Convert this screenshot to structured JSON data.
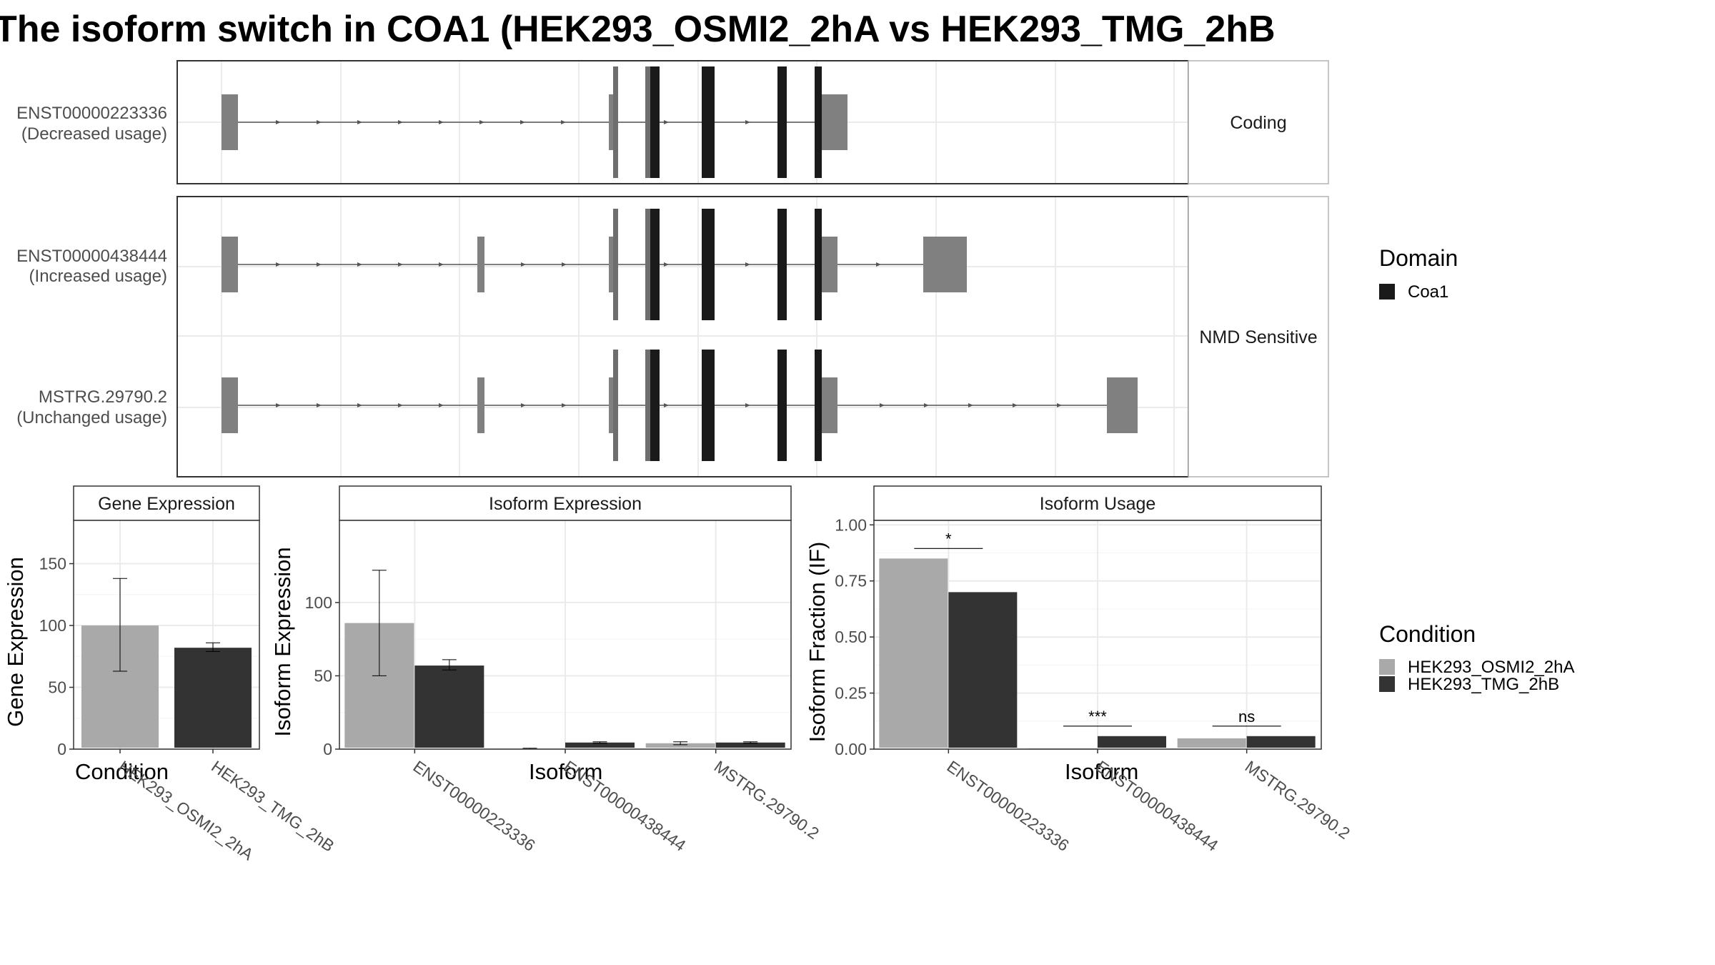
{
  "title": "The isoform switch in COA1 (HEK293_OSMI2_2hA vs HEK293_TMG_2hB",
  "colors": {
    "condition_a": "#a9a9a9",
    "condition_b": "#333333",
    "domain_coa1": "#1a1a1a",
    "exon": "#808080",
    "grid": "#ebebeb",
    "panel_border": "#333333",
    "strip_fill": "#ffffff"
  },
  "structure": {
    "facets": [
      "Coding",
      "NMD Sensitive"
    ],
    "isoforms": [
      {
        "id": "ENST00000223336",
        "usage": "(Decreased usage)",
        "facet": "Coding"
      },
      {
        "id": "ENST00000438444",
        "usage": "(Increased usage)",
        "facet": "NMD Sensitive"
      },
      {
        "id": "MSTRG.29790.2",
        "usage": "(Unchanged usage)",
        "facet": "NMD Sensitive"
      }
    ]
  },
  "legends": {
    "domain": {
      "title": "Domain",
      "items": [
        "Coa1"
      ]
    },
    "condition": {
      "title": "Condition",
      "items": [
        "HEK293_OSMI2_2hA",
        "HEK293_TMG_2hB"
      ]
    }
  },
  "chart_data": [
    {
      "type": "bar",
      "strip": "Gene Expression",
      "xlabel": "Condition",
      "ylabel": "Gene Expression",
      "categories": [
        "HEK293_OSMI2_2hA",
        "HEK293_TMG_2hB"
      ],
      "values": [
        100,
        82
      ],
      "errors": [
        [
          63,
          138
        ],
        [
          79,
          86
        ]
      ],
      "ylim": [
        0,
        185
      ],
      "yticks": [
        "0",
        "50",
        "100",
        "150"
      ],
      "grid": true
    },
    {
      "type": "bar",
      "strip": "Isoform Expression",
      "xlabel": "Isoform",
      "ylabel": "Isoform Expression",
      "categories": [
        "ENST00000223336",
        "ENST00000438444",
        "MSTRG.29790.2"
      ],
      "series": [
        {
          "name": "HEK293_OSMI2_2hA",
          "values": [
            86,
            0.3,
            4
          ],
          "errors": [
            [
              50,
              122
            ],
            [
              0,
              0.6
            ],
            [
              3,
              5
            ]
          ]
        },
        {
          "name": "HEK293_TMG_2hB",
          "values": [
            57,
            4.5,
            4.5
          ],
          "errors": [
            [
              54,
              61
            ],
            [
              4,
              5
            ],
            [
              4,
              5
            ]
          ]
        }
      ],
      "ylim": [
        0,
        156
      ],
      "yticks": [
        "0",
        "50",
        "100"
      ],
      "grid": true
    },
    {
      "type": "bar",
      "strip": "Isoform Usage",
      "xlabel": "Isoform",
      "ylabel": "Isoform Fraction (IF)",
      "categories": [
        "ENST00000223336",
        "ENST00000438444",
        "MSTRG.29790.2"
      ],
      "series": [
        {
          "name": "HEK293_OSMI2_2hA",
          "values": [
            0.85,
            0.003,
            0.048
          ]
        },
        {
          "name": "HEK293_TMG_2hB",
          "values": [
            0.7,
            0.058,
            0.058
          ]
        }
      ],
      "significance": [
        "*",
        "***",
        "ns"
      ],
      "ylim": [
        0,
        1.02
      ],
      "yticks": [
        "0.00",
        "0.25",
        "0.50",
        "0.75",
        "1.00"
      ],
      "grid": true
    }
  ]
}
